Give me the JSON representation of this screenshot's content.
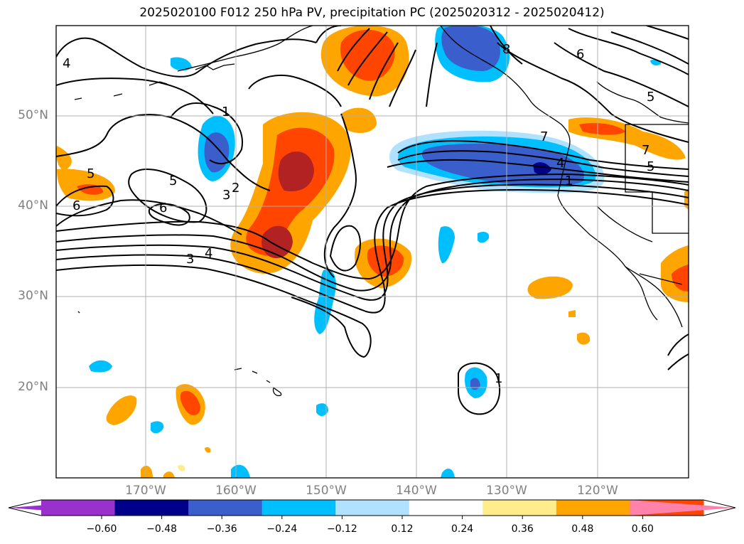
{
  "title": "2025020100 F012 250 hPa PV, precipitation PC (2025020312 - 2025020412)",
  "lat_labels": [
    "50°N",
    "40°N",
    "30°N",
    "20°N"
  ],
  "lon_labels": [
    "170°W",
    "160°W",
    "150°W",
    "140°W",
    "130°W",
    "120°W"
  ],
  "colorbar": {
    "ticks": [
      "−0.60",
      "−0.48",
      "−0.36",
      "−0.24",
      "−0.12",
      "0.12",
      "0.24",
      "0.36",
      "0.48",
      "0.60"
    ],
    "colors": [
      "#9932cc",
      "#00008b",
      "#3a5fcd",
      "#00bfff",
      "#b0e2ff",
      "#ffffff",
      "#ffec8b",
      "#ffa500",
      "#ff4500",
      "#b22222",
      "#ff82ab"
    ]
  },
  "contour_labels": [
    "1",
    "1",
    "1",
    "2",
    "3",
    "3",
    "4",
    "4",
    "4",
    "5",
    "5",
    "5",
    "5",
    "6",
    "6",
    "6",
    "7",
    "7",
    "8"
  ]
}
